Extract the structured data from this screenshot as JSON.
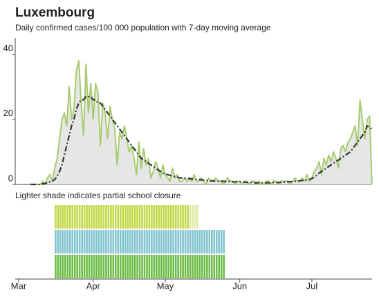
{
  "chart_data": {
    "type": "line",
    "title": "Luxembourg",
    "subtitle": "Daily confirmed cases/100 000 population with 7-day moving average",
    "annotation": "Lighter shade indicates partial school closure",
    "categories": [
      "Mar",
      null,
      null,
      null,
      null,
      null,
      null,
      null,
      null,
      null,
      null,
      null,
      null,
      null,
      null,
      null,
      null,
      null,
      null,
      null,
      null,
      null,
      null,
      null,
      null,
      null,
      null,
      null,
      null,
      null,
      null,
      "Apr",
      null,
      null,
      null,
      null,
      null,
      null,
      null,
      null,
      null,
      null,
      null,
      null,
      null,
      null,
      null,
      null,
      null,
      null,
      null,
      null,
      null,
      null,
      null,
      null,
      null,
      null,
      null,
      null,
      null,
      "May",
      null,
      null,
      null,
      null,
      null,
      null,
      null,
      null,
      null,
      null,
      null,
      null,
      null,
      null,
      null,
      null,
      null,
      null,
      null,
      null,
      null,
      null,
      null,
      null,
      null,
      null,
      null,
      null,
      null,
      null,
      "Jun",
      null,
      null,
      null,
      null,
      null,
      null,
      null,
      null,
      null,
      null,
      null,
      null,
      null,
      null,
      null,
      null,
      null,
      null,
      null,
      null,
      null,
      null,
      null,
      null,
      null,
      null,
      null,
      null,
      null,
      "Jul",
      null,
      null,
      null,
      null,
      null,
      null,
      null,
      null,
      null,
      null,
      null,
      null,
      null,
      null,
      null,
      null,
      null,
      null,
      null,
      null,
      null,
      null,
      null,
      null,
      null
    ],
    "series": [
      {
        "color": "#a6cc6e",
        "fill": "#e6e6e6",
        "values": [
          null,
          null,
          null,
          null,
          null,
          0,
          0,
          0,
          0,
          0,
          1,
          0,
          2,
          3,
          1,
          5,
          8,
          14,
          20,
          22,
          18,
          30,
          20,
          23,
          35,
          38,
          25,
          15,
          37,
          22,
          31,
          20,
          31,
          28,
          12,
          25,
          22,
          14,
          24,
          20,
          17,
          6,
          16,
          14,
          18,
          14,
          10,
          12,
          8,
          3,
          13,
          5,
          11,
          6,
          8,
          2,
          4,
          7,
          5,
          2,
          6,
          3,
          2,
          1,
          5,
          2,
          3,
          1,
          1,
          2,
          1,
          2,
          1,
          3,
          1,
          1,
          2,
          1,
          0,
          2,
          1,
          1,
          2,
          1,
          1,
          0,
          1,
          2,
          1,
          1,
          0,
          1,
          1,
          0,
          1,
          1,
          0,
          1,
          1,
          0,
          1,
          0,
          0,
          1,
          1,
          0,
          1,
          1,
          0,
          1,
          1,
          1,
          1,
          0,
          1,
          2,
          1,
          1,
          2,
          1,
          3,
          1,
          2,
          4,
          5,
          7,
          3,
          8,
          6,
          9,
          7,
          10,
          8,
          5,
          11,
          12,
          10,
          13,
          14,
          16,
          18,
          12,
          26,
          20,
          14,
          20,
          21,
          0
        ]
      },
      {
        "color": "#333333",
        "dash": "8 3 2 3",
        "values": [
          null,
          null,
          null,
          null,
          null,
          0,
          0,
          0,
          0,
          0,
          0.2,
          0.3,
          0.5,
          0.8,
          1,
          1.5,
          2.5,
          4,
          6,
          9,
          12,
          15,
          18,
          20,
          23,
          25,
          26,
          26,
          27,
          27,
          27,
          26,
          26,
          25,
          25,
          24,
          23,
          22,
          21,
          20,
          19,
          18,
          17,
          16,
          15,
          14,
          13,
          12,
          11,
          10,
          9,
          8,
          7.5,
          7,
          6.5,
          6,
          5.5,
          5,
          4.5,
          4,
          3.5,
          3.2,
          3,
          2.8,
          2.6,
          2.4,
          2.2,
          2,
          2,
          1.9,
          1.8,
          1.8,
          1.7,
          1.6,
          1.5,
          1.5,
          1.4,
          1.3,
          1.2,
          1.2,
          1.1,
          1.1,
          1,
          1,
          1,
          1,
          0.9,
          0.9,
          0.9,
          0.8,
          0.8,
          0.8,
          0.8,
          0.7,
          0.7,
          0.6,
          0.6,
          0.6,
          0.5,
          0.5,
          0.5,
          0.5,
          0.5,
          0.5,
          0.5,
          0.5,
          0.6,
          0.6,
          0.6,
          0.6,
          0.7,
          0.7,
          0.8,
          0.8,
          0.9,
          1,
          1,
          1.1,
          1.2,
          1.3,
          1.4,
          1.5,
          1.8,
          2.2,
          2.8,
          3.5,
          4,
          4.5,
          5,
          5.5,
          6,
          6.5,
          7,
          7.5,
          8,
          8.5,
          9,
          9.5,
          10,
          11,
          12,
          13,
          14,
          15,
          16,
          18,
          17.5,
          17
        ]
      }
    ],
    "ylim": [
      0,
      45
    ],
    "yticks": [
      0,
      20,
      40
    ],
    "closures": [
      {
        "color": "#c2d845",
        "light_color": "#e2eaa6",
        "full": [
          15,
          70
        ],
        "partial": [
          71,
          74
        ]
      },
      {
        "color": "#7fc3cf",
        "full": [
          15,
          85
        ]
      },
      {
        "color": "#6cbc45",
        "full": [
          15,
          85
        ]
      }
    ]
  }
}
